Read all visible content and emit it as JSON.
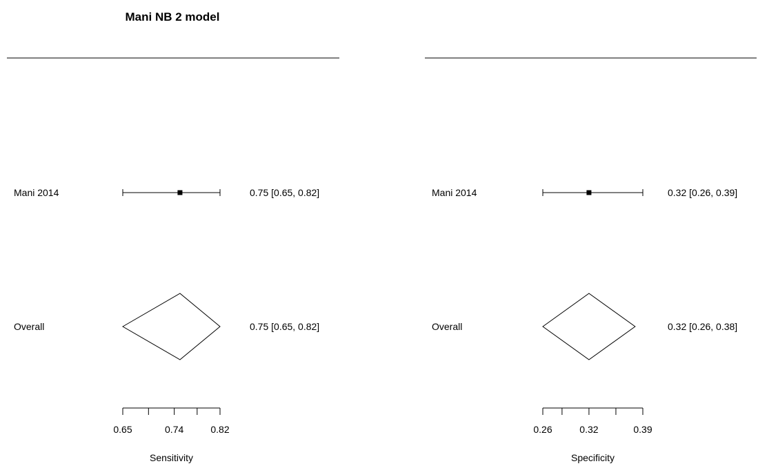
{
  "chart_data": {
    "type": "forest",
    "title": "Mani NB 2 model",
    "row_labels": [
      "Mani 2014",
      "Overall"
    ],
    "panels": [
      {
        "xlabel": "Sensitivity",
        "xlim": [
          0.65,
          0.82
        ],
        "ticks": [
          0.65,
          0.695,
          0.74,
          0.78,
          0.82
        ],
        "tick_labels": [
          "0.65",
          "",
          "0.74",
          "",
          "0.82"
        ],
        "study": {
          "label": "Mani 2014",
          "estimate": 0.75,
          "lower": 0.65,
          "upper": 0.82,
          "text": "0.75 [0.65, 0.82]"
        },
        "overall": {
          "label": "Overall",
          "estimate": 0.75,
          "lower": 0.65,
          "upper": 0.82,
          "text": "0.75 [0.65, 0.82]"
        }
      },
      {
        "xlabel": "Specificity",
        "xlim": [
          0.26,
          0.39
        ],
        "ticks": [
          0.26,
          0.285,
          0.32,
          0.355,
          0.39
        ],
        "tick_labels": [
          "0.26",
          "",
          "0.32",
          "",
          "0.39"
        ],
        "study": {
          "label": "Mani 2014",
          "estimate": 0.32,
          "lower": 0.26,
          "upper": 0.39,
          "text": "0.32 [0.26, 0.39]"
        },
        "overall": {
          "label": "Overall",
          "estimate": 0.32,
          "lower": 0.26,
          "upper": 0.38,
          "text": "0.32 [0.26, 0.38]"
        }
      }
    ]
  }
}
